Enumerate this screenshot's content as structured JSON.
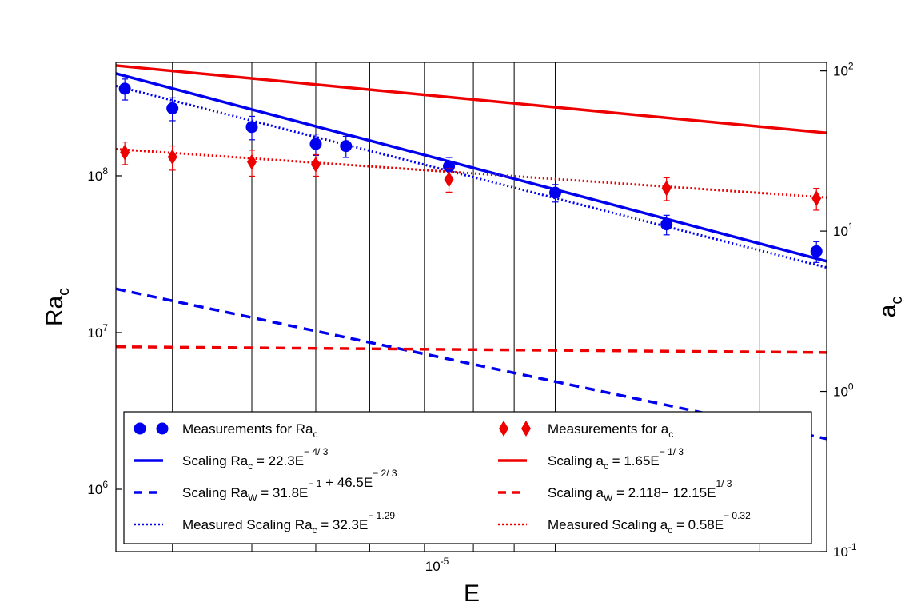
{
  "chart_data": {
    "type": "scatter",
    "title": "",
    "xlabel": "E",
    "ylabel_left": "Ra",
    "ylabel_left_sub": "c",
    "ylabel_right": "a",
    "ylabel_right_sub": "c",
    "x_scale": "log",
    "x_range": [
      2.7e-06,
      4.9e-05
    ],
    "x_ticks": [
      {
        "value": 1e-05,
        "base": "10",
        "exp": "-5"
      }
    ],
    "x_gridlines": [
      3.4e-06,
      4.7e-06,
      6.1e-06,
      7.6e-06,
      9.5e-06,
      1.16e-05,
      1.37e-05,
      1.62e-05,
      3.73e-05
    ],
    "y_left": {
      "scale": "log",
      "range": [
        400000.0,
        530000000.0
      ],
      "ticks": [
        {
          "value": 1000000.0,
          "base": "10",
          "exp": "6"
        },
        {
          "value": 10000000.0,
          "base": "10",
          "exp": "7"
        },
        {
          "value": 100000000.0,
          "base": "10",
          "exp": "8"
        }
      ]
    },
    "y_right": {
      "scale": "log",
      "range": [
        0.1,
        113
      ],
      "ticks": [
        {
          "value": 0.1,
          "base": "10",
          "exp": "-1"
        },
        {
          "value": 1,
          "base": "10",
          "exp": "0"
        },
        {
          "value": 10,
          "base": "10",
          "exp": "1"
        },
        {
          "value": 100,
          "base": "10",
          "exp": "2"
        }
      ]
    },
    "series": [
      {
        "name": "Measurements for Ra_c",
        "axis": "left",
        "kind": "points",
        "marker": "circle",
        "color": "#0000ee",
        "points": [
          {
            "x": 2.8e-06,
            "y": 360000000.0,
            "err": 55000000.0
          },
          {
            "x": 3.4e-06,
            "y": 270000000.0,
            "err": 45000000.0
          },
          {
            "x": 4.7e-06,
            "y": 205000000.0,
            "err": 35000000.0
          },
          {
            "x": 6.1e-06,
            "y": 160000000.0,
            "err": 25000000.0
          },
          {
            "x": 6.9e-06,
            "y": 155000000.0,
            "err": 24000000.0
          },
          {
            "x": 1.05e-05,
            "y": 115000000.0,
            "err": 16000000.0
          },
          {
            "x": 1.62e-05,
            "y": 78000000.0,
            "err": 10000000.0
          },
          {
            "x": 2.55e-05,
            "y": 49000000.0,
            "err": 7000000.0
          },
          {
            "x": 4.7e-05,
            "y": 33000000.0,
            "err": 5000000.0
          }
        ]
      },
      {
        "name": "Measurements for a_c",
        "axis": "right",
        "kind": "points",
        "marker": "diamond",
        "color": "#ee0000",
        "points": [
          {
            "x": 2.8e-06,
            "y": 31,
            "err": 5
          },
          {
            "x": 3.4e-06,
            "y": 29,
            "err": 5
          },
          {
            "x": 4.7e-06,
            "y": 27,
            "err": 5
          },
          {
            "x": 6.1e-06,
            "y": 26,
            "err": 4
          },
          {
            "x": 1.05e-05,
            "y": 21,
            "err": 3.5
          },
          {
            "x": 2.55e-05,
            "y": 18.5,
            "err": 3
          },
          {
            "x": 4.7e-05,
            "y": 16,
            "err": 2.5
          }
        ]
      },
      {
        "name": "Scaling Ra_c = 22.3E^-4/3",
        "axis": "left",
        "kind": "line",
        "style": "solid",
        "color": "#0000ee",
        "endpoints": [
          [
            2.7e-06,
            450000000.0
          ],
          [
            4.9e-05,
            28500000.0
          ]
        ]
      },
      {
        "name": "Scaling a_c = 1.65E^-1/3",
        "axis": "right",
        "kind": "line",
        "style": "solid",
        "color": "#ee0000",
        "endpoints": [
          [
            2.7e-06,
            108
          ],
          [
            4.9e-05,
            41
          ]
        ]
      },
      {
        "name": "Scaling Ra_W = 31.8E^-1 + 46.5E^-2/3",
        "axis": "left",
        "kind": "line",
        "style": "dashed",
        "color": "#0000ee",
        "endpoints": [
          [
            2.7e-06,
            19000000.0
          ],
          [
            4.9e-05,
            2100000.0
          ]
        ]
      },
      {
        "name": "Scaling a_W = 2.118 - 12.15E^1/3",
        "axis": "right",
        "kind": "line",
        "style": "dashed",
        "color": "#ee0000",
        "endpoints": [
          [
            2.7e-06,
            1.9
          ],
          [
            4.9e-05,
            1.75
          ]
        ]
      },
      {
        "name": "Measured Scaling Ra_c = 32.3E^-1.29",
        "axis": "left",
        "kind": "line",
        "style": "dotted",
        "color": "#0000ee",
        "endpoints": [
          [
            2.7e-06,
            375000000.0
          ],
          [
            4.9e-05,
            26000000.0
          ]
        ]
      },
      {
        "name": "Measured Scaling a_c = 0.58E^-0.32",
        "axis": "right",
        "kind": "line",
        "style": "dotted",
        "color": "#ee0000",
        "endpoints": [
          [
            2.7e-06,
            32.5
          ],
          [
            4.9e-05,
            16.2
          ]
        ]
      }
    ],
    "legend": {
      "placement": "bottom",
      "columns": 2,
      "entries": [
        {
          "series": 0,
          "parts": [
            [
              "Measurements for Ra",
              ""
            ],
            [
              "c",
              "sub"
            ]
          ]
        },
        {
          "series": 1,
          "parts": [
            [
              "Measurements for a",
              ""
            ],
            [
              "c",
              "sub"
            ]
          ]
        },
        {
          "series": 2,
          "parts": [
            [
              "Scaling Ra",
              ""
            ],
            [
              "c",
              "sub"
            ],
            [
              "= 22.3E",
              ""
            ],
            [
              "− 4/ 3",
              "sup"
            ]
          ]
        },
        {
          "series": 3,
          "parts": [
            [
              "Scaling a",
              ""
            ],
            [
              "c",
              "sub"
            ],
            [
              "= 1.65E",
              ""
            ],
            [
              "− 1/ 3",
              "sup"
            ]
          ]
        },
        {
          "series": 4,
          "parts": [
            [
              "Scaling Ra",
              ""
            ],
            [
              "W",
              "sub"
            ],
            [
              "= 31.8E",
              ""
            ],
            [
              "− 1",
              "sup"
            ],
            [
              " + 46.5E",
              ""
            ],
            [
              "− 2/ 3",
              "sup"
            ]
          ]
        },
        {
          "series": 5,
          "parts": [
            [
              "Scaling a",
              ""
            ],
            [
              "W",
              "sub"
            ],
            [
              "= 2.118− 12.15E",
              ""
            ],
            [
              "1/ 3",
              "sup"
            ]
          ]
        },
        {
          "series": 6,
          "parts": [
            [
              "Measured Scaling Ra",
              ""
            ],
            [
              "c",
              "sub"
            ],
            [
              "= 32.3E",
              ""
            ],
            [
              "− 1.29",
              "sup"
            ]
          ]
        },
        {
          "series": 7,
          "parts": [
            [
              "Measured Scaling a",
              ""
            ],
            [
              "c",
              "sub"
            ],
            [
              "= 0.58E",
              ""
            ],
            [
              "− 0.32",
              "sup"
            ]
          ]
        }
      ]
    }
  }
}
